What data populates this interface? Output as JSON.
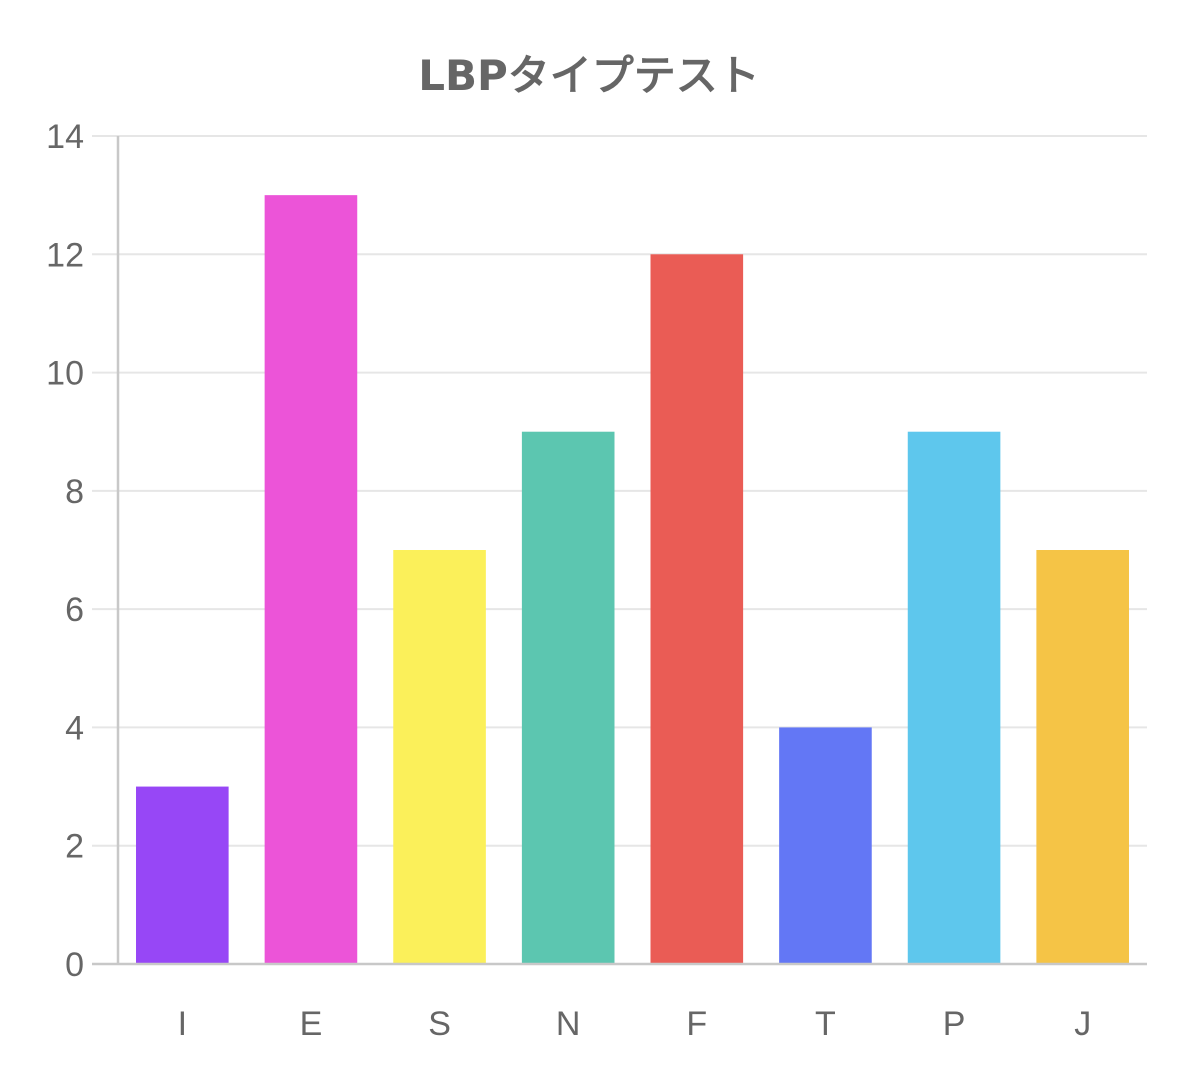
{
  "chart_data": {
    "type": "bar",
    "title": "LBPタイプテスト",
    "categories": [
      "I",
      "E",
      "S",
      "N",
      "F",
      "T",
      "P",
      "J"
    ],
    "values": [
      3,
      13,
      7,
      9,
      12,
      4,
      9,
      7
    ],
    "colors": [
      "#9747f6",
      "#ec54d8",
      "#fbf05a",
      "#5cc6b0",
      "#ea5c55",
      "#6377f5",
      "#5ec7ed",
      "#f5c446"
    ],
    "ylim": [
      0,
      14
    ],
    "yticks": [
      0,
      2,
      4,
      6,
      8,
      10,
      12,
      14
    ],
    "grid": true,
    "legend": "none"
  }
}
